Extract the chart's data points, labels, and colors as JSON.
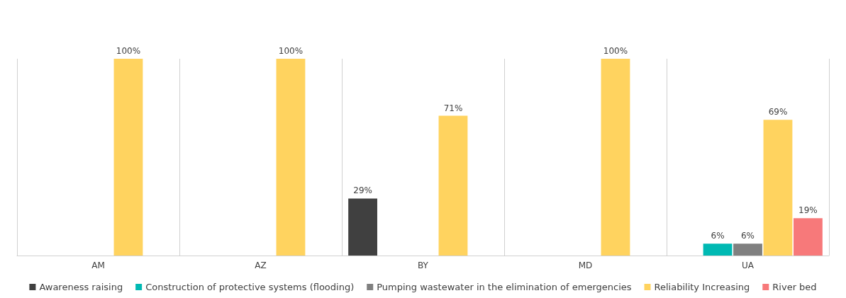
{
  "chart_data": {
    "type": "bar",
    "categories": [
      "AM",
      "AZ",
      "BY",
      "MD",
      "UA"
    ],
    "series": [
      {
        "name": "Awareness raising",
        "color": "#404040",
        "values": [
          0,
          0,
          29,
          0,
          0
        ],
        "value_labels": [
          null,
          null,
          "29%",
          null,
          null
        ]
      },
      {
        "name": "Construction of protective systems (flooding)",
        "color": "#00b9b3",
        "values": [
          0,
          0,
          0,
          0,
          6
        ],
        "value_labels": [
          null,
          null,
          null,
          null,
          "6%"
        ]
      },
      {
        "name": "Pumping wastewater in the elimination of emergencies",
        "color": "#808080",
        "values": [
          0,
          0,
          0,
          0,
          6
        ],
        "value_labels": [
          null,
          null,
          null,
          null,
          "6%"
        ]
      },
      {
        "name": "Reliability Increasing",
        "color": "#ffd35f",
        "values": [
          100,
          100,
          71,
          100,
          69
        ],
        "value_labels": [
          "100%",
          "100%",
          "71%",
          "100%",
          "69%"
        ]
      },
      {
        "name": "River bed",
        "color": "#f7797a",
        "values": [
          0,
          0,
          0,
          0,
          19
        ],
        "value_labels": [
          null,
          null,
          null,
          null,
          "19%"
        ]
      }
    ],
    "grid": "x",
    "legend": "bottom"
  }
}
